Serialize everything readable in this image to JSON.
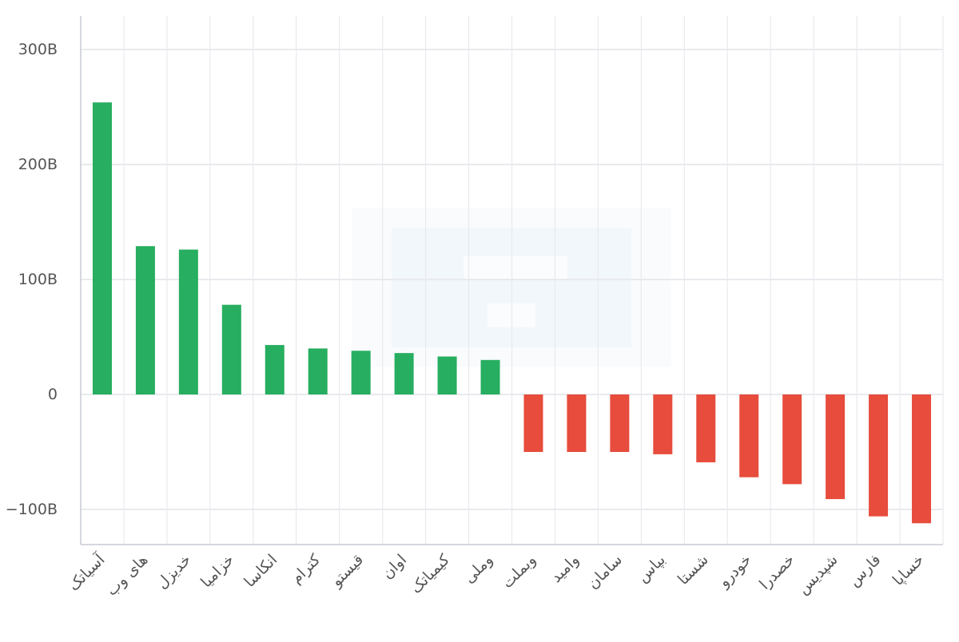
{
  "chart_data": {
    "type": "bar",
    "categories": [
      "آسیاتک",
      "های وب",
      "خدیزل",
      "خزامیا",
      "انکاسا",
      "کترام",
      "قیستو",
      "اوان",
      "کیمیاتک",
      "وملی",
      "وبملت",
      "وامید",
      "سامان",
      "بپاس",
      "شستا",
      "خودرو",
      "خصدرا",
      "شپدیس",
      "فارس",
      "خساپا"
    ],
    "values": [
      254,
      129,
      126,
      78,
      43,
      40,
      38,
      36,
      33,
      30,
      -50,
      -50,
      -50,
      -52,
      -59,
      -72,
      -78,
      -91,
      -106,
      -112
    ],
    "y_ticks": [
      -100,
      0,
      100,
      200,
      300
    ],
    "y_tick_labels": [
      "−100B",
      "0",
      "100B",
      "200B",
      "300B"
    ],
    "ylim": [
      -130,
      320
    ],
    "grid": true,
    "colors": {
      "positive": "#27ae60",
      "negative": "#e74c3c",
      "grid": "#e8eaee",
      "axis": "#c8ccd4",
      "text": "#555555"
    }
  }
}
